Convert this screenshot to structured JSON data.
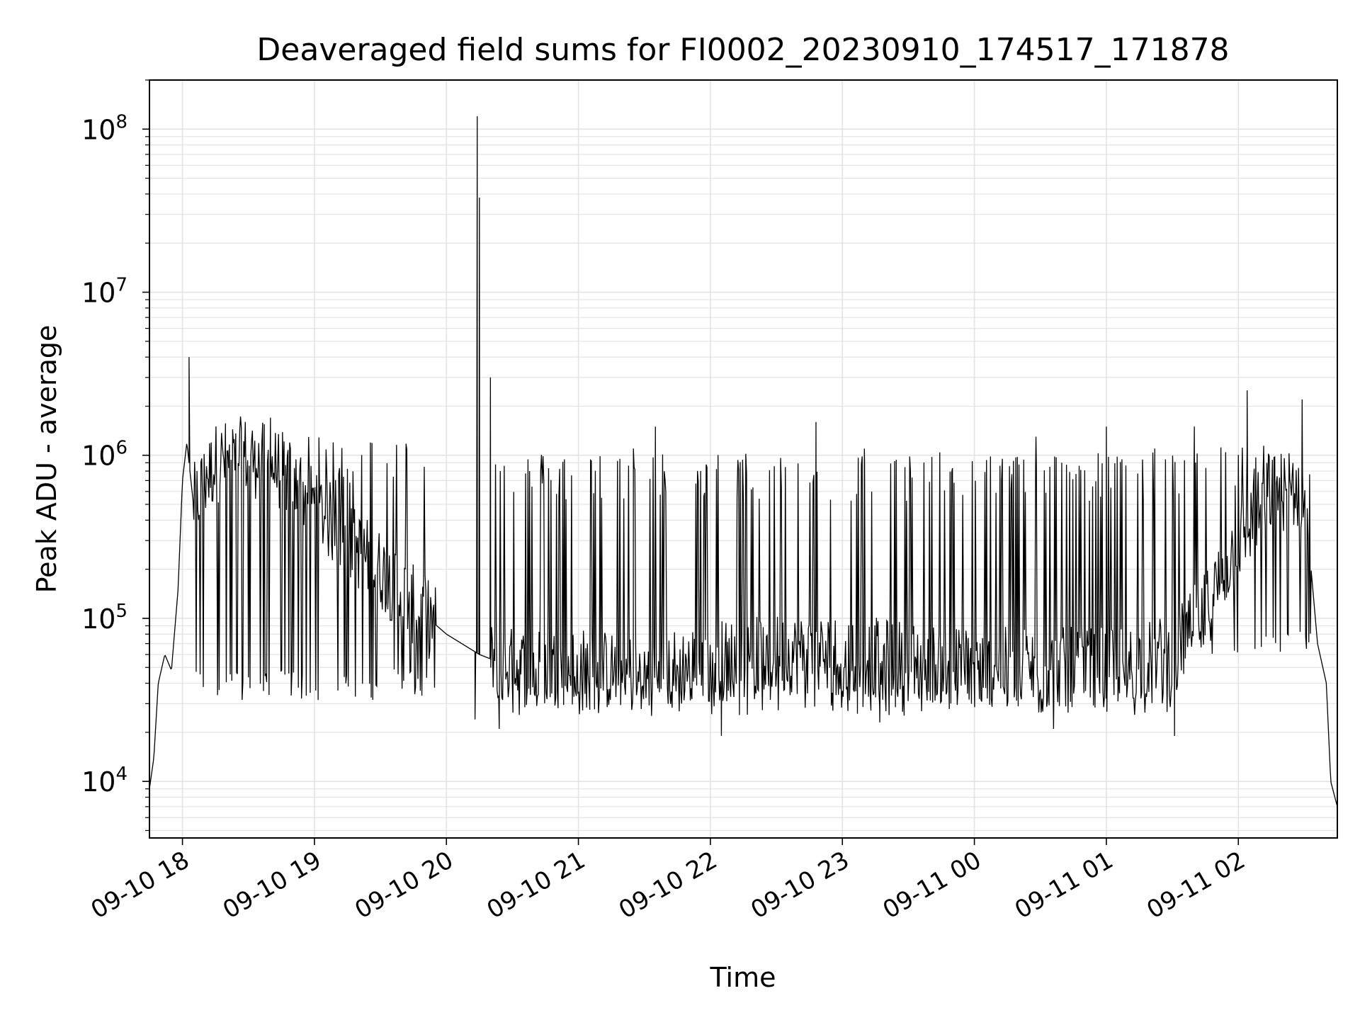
{
  "chart_data": {
    "type": "line",
    "title": "Deaveraged field sums for FI0002_20230910_174517_171878",
    "xlabel": "Time",
    "ylabel": "Peak ADU - average",
    "yscale": "log",
    "ylim": [
      4500,
      200000000
    ],
    "xlim": [
      "2023-09-10 17:45",
      "2023-09-11 02:45"
    ],
    "grid": true,
    "x_ticks": [
      {
        "t": "2023-09-10 18:00",
        "label": "09-10 18"
      },
      {
        "t": "2023-09-10 19:00",
        "label": "09-10 19"
      },
      {
        "t": "2023-09-10 20:00",
        "label": "09-10 20"
      },
      {
        "t": "2023-09-10 21:00",
        "label": "09-10 21"
      },
      {
        "t": "2023-09-10 22:00",
        "label": "09-10 22"
      },
      {
        "t": "2023-09-10 23:00",
        "label": "09-10 23"
      },
      {
        "t": "2023-09-11 00:00",
        "label": "09-11 00"
      },
      {
        "t": "2023-09-11 01:00",
        "label": "09-11 01"
      },
      {
        "t": "2023-09-11 02:00",
        "label": "09-11 02"
      }
    ],
    "y_ticks": [
      {
        "value": 10000,
        "base": "10",
        "exp": "4"
      },
      {
        "value": 100000,
        "base": "10",
        "exp": "5"
      },
      {
        "value": 1000000,
        "base": "10",
        "exp": "6"
      },
      {
        "value": 10000000,
        "base": "10",
        "exp": "7"
      },
      {
        "value": 100000000,
        "base": "10",
        "exp": "8"
      }
    ],
    "series": [
      {
        "color": "#000000",
        "baseline": [
          [
            "2023-09-10 17:45",
            9000
          ],
          [
            "2023-09-10 17:47",
            14000
          ],
          [
            "2023-09-10 17:49",
            40000
          ],
          [
            "2023-09-10 17:52",
            60000
          ],
          [
            "2023-09-10 17:55",
            48000
          ],
          [
            "2023-09-10 17:58",
            150000
          ],
          [
            "2023-09-10 18:00",
            700000
          ],
          [
            "2023-09-10 18:02",
            1200000
          ],
          [
            "2023-09-10 18:05",
            500000
          ],
          [
            "2023-09-10 18:15",
            900000
          ],
          [
            "2023-09-10 18:30",
            1000000
          ],
          [
            "2023-09-10 18:45",
            800000
          ],
          [
            "2023-09-10 19:00",
            500000
          ],
          [
            "2023-09-10 19:15",
            300000
          ],
          [
            "2023-09-10 19:30",
            200000
          ],
          [
            "2023-09-10 19:45",
            120000
          ],
          [
            "2023-09-10 20:00",
            80000
          ],
          [
            "2023-09-10 20:15",
            60000
          ],
          [
            "2023-09-10 20:30",
            50000
          ],
          [
            "2023-09-10 21:00",
            50000
          ],
          [
            "2023-09-10 21:30",
            45000
          ],
          [
            "2023-09-10 22:00",
            55000
          ],
          [
            "2023-09-10 22:30",
            60000
          ],
          [
            "2023-09-10 23:00",
            60000
          ],
          [
            "2023-09-10 23:30",
            55000
          ],
          [
            "2023-09-11 00:00",
            50000
          ],
          [
            "2023-09-11 00:30",
            50000
          ],
          [
            "2023-09-11 01:00",
            50000
          ],
          [
            "2023-09-11 01:30",
            60000
          ],
          [
            "2023-09-11 01:45",
            110000
          ],
          [
            "2023-09-11 02:00",
            300000
          ],
          [
            "2023-09-11 02:15",
            600000
          ],
          [
            "2023-09-11 02:30",
            600000
          ],
          [
            "2023-09-11 02:36",
            70000
          ],
          [
            "2023-09-11 02:40",
            40000
          ],
          [
            "2023-09-11 02:42",
            10000
          ],
          [
            "2023-09-11 02:45",
            7000
          ]
        ],
        "spikes": [
          [
            "2023-09-10 18:03",
            4000000
          ],
          [
            "2023-09-10 18:40",
            1700000
          ],
          [
            "2023-09-10 20:14",
            120000000
          ],
          [
            "2023-09-10 20:15",
            38000000
          ],
          [
            "2023-09-10 20:20",
            3000000
          ],
          [
            "2023-09-10 21:25",
            1100000
          ],
          [
            "2023-09-10 21:35",
            1500000
          ],
          [
            "2023-09-10 22:48",
            1600000
          ],
          [
            "2023-09-10 23:10",
            1100000
          ],
          [
            "2023-09-11 00:28",
            1300000
          ],
          [
            "2023-09-11 01:00",
            1500000
          ],
          [
            "2023-09-11 01:22",
            1100000
          ],
          [
            "2023-09-11 01:40",
            1500000
          ],
          [
            "2023-09-11 02:04",
            2500000
          ],
          [
            "2023-09-11 02:29",
            2200000
          ]
        ],
        "dips": [
          [
            "2023-09-10 20:13",
            24000
          ],
          [
            "2023-09-10 20:24",
            21000
          ],
          [
            "2023-09-10 22:05",
            19000
          ],
          [
            "2023-09-10 23:17",
            23000
          ],
          [
            "2023-09-11 00:36",
            21000
          ],
          [
            "2023-09-11 01:31",
            19000
          ]
        ],
        "oscillation": [
          {
            "from": "2023-09-10 18:05",
            "to": "2023-09-10 19:55",
            "low": 35000,
            "high": 1300000
          },
          {
            "from": "2023-09-10 20:20",
            "to": "2023-09-11 01:35",
            "low": 28000,
            "high": 1050000
          },
          {
            "from": "2023-09-11 01:35",
            "to": "2023-09-11 02:33",
            "low": 60000,
            "high": 1200000
          }
        ]
      }
    ]
  }
}
